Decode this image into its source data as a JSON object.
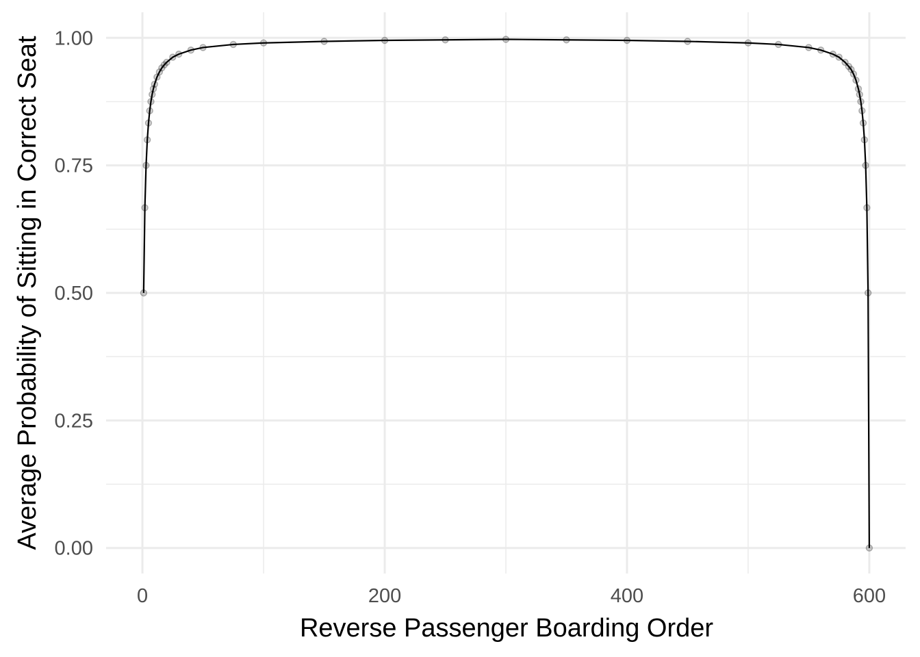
{
  "chart_data": {
    "type": "line",
    "title": "",
    "xlabel": "Reverse Passenger Boarding Order",
    "ylabel": "Average Probability of Sitting in Correct Seat",
    "xlim": [
      -30,
      630
    ],
    "ylim": [
      -0.05,
      1.05
    ],
    "x_ticks": [
      0,
      200,
      400,
      600
    ],
    "x_tick_labels": [
      "0",
      "200",
      "400",
      "600"
    ],
    "x_minor_ticks": [
      100,
      300,
      500
    ],
    "y_ticks": [
      0,
      0.25,
      0.5,
      0.75,
      1.0
    ],
    "y_tick_labels": [
      "0.00",
      "0.25",
      "0.50",
      "0.75",
      "1.00"
    ],
    "y_minor_ticks": [
      0.125,
      0.375,
      0.625,
      0.875
    ],
    "grid": true,
    "legend": "none",
    "series": [
      {
        "x": [
          1,
          2,
          3,
          4,
          5,
          6,
          7,
          8,
          9,
          10,
          12,
          14,
          16,
          18,
          20,
          25,
          30,
          40,
          50,
          75,
          100,
          150,
          200,
          250,
          300,
          350,
          400,
          450,
          500,
          525,
          550,
          560,
          570,
          575,
          580,
          583,
          585,
          587,
          589,
          591,
          592,
          593,
          594,
          595,
          596,
          597,
          598,
          599,
          600
        ],
        "values": [
          0.5,
          0.667,
          0.75,
          0.8,
          0.833,
          0.857,
          0.875,
          0.889,
          0.9,
          0.909,
          0.923,
          0.933,
          0.941,
          0.947,
          0.952,
          0.962,
          0.968,
          0.976,
          0.981,
          0.987,
          0.99,
          0.993,
          0.995,
          0.996,
          0.997,
          0.996,
          0.995,
          0.993,
          0.99,
          0.987,
          0.981,
          0.976,
          0.968,
          0.962,
          0.952,
          0.944,
          0.938,
          0.929,
          0.917,
          0.9,
          0.889,
          0.875,
          0.857,
          0.833,
          0.8,
          0.75,
          0.667,
          0.5,
          0.0
        ]
      }
    ]
  }
}
